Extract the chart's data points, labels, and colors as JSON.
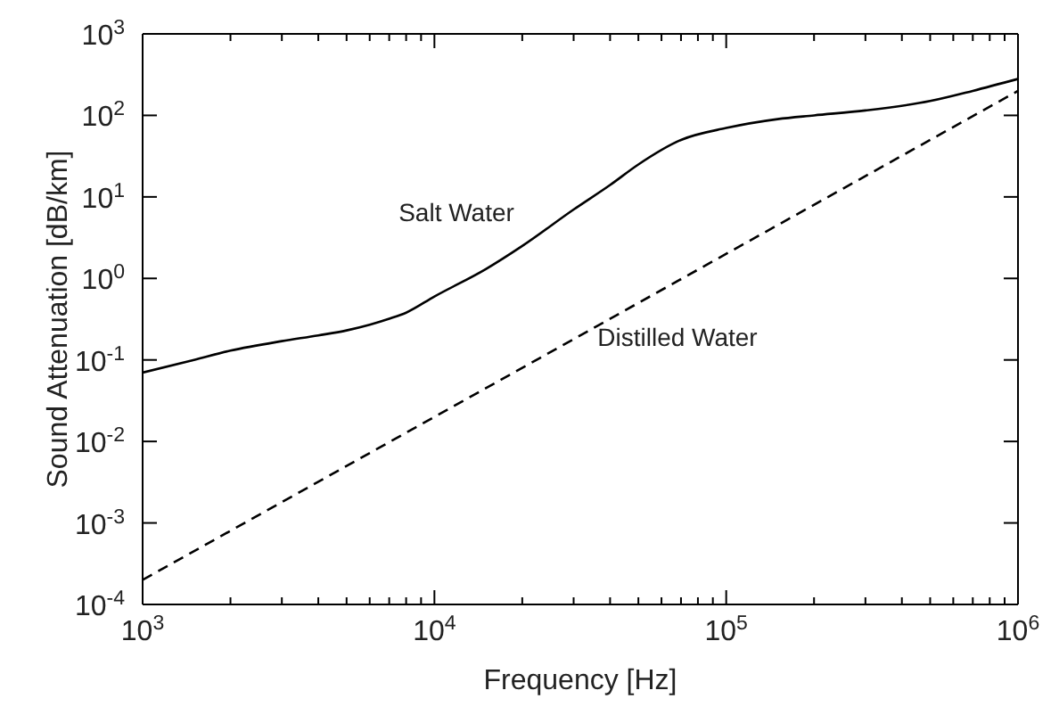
{
  "chart_data": {
    "type": "line",
    "log": "xy",
    "xlabel": "Frequency [Hz]",
    "ylabel": "Sound Attenuation [dB/km]",
    "grid": false,
    "legend": false,
    "marker": "none",
    "xlim": [
      1000,
      1000000
    ],
    "ylim": [
      0.0001,
      1000
    ],
    "xticks": [
      {
        "value": 1000,
        "label": "10$^{3}$"
      },
      {
        "value": 2000,
        "label": null
      },
      {
        "value": 3000,
        "label": null
      },
      {
        "value": 4000,
        "label": null
      },
      {
        "value": 5000,
        "label": null
      },
      {
        "value": 6000,
        "label": null
      },
      {
        "value": 7000,
        "label": null
      },
      {
        "value": 8000,
        "label": null
      },
      {
        "value": 9000,
        "label": null
      },
      {
        "value": 10000,
        "label": "10$^{4}$"
      },
      {
        "value": 20000,
        "label": null
      },
      {
        "value": 30000,
        "label": null
      },
      {
        "value": 40000,
        "label": null
      },
      {
        "value": 50000,
        "label": null
      },
      {
        "value": 60000,
        "label": null
      },
      {
        "value": 70000,
        "label": null
      },
      {
        "value": 80000,
        "label": null
      },
      {
        "value": 90000,
        "label": null
      },
      {
        "value": 100000,
        "label": "10$^{5}$"
      },
      {
        "value": 200000,
        "label": null
      },
      {
        "value": 300000,
        "label": null
      },
      {
        "value": 400000,
        "label": null
      },
      {
        "value": 500000,
        "label": null
      },
      {
        "value": 600000,
        "label": null
      },
      {
        "value": 700000,
        "label": null
      },
      {
        "value": 800000,
        "label": null
      },
      {
        "value": 900000,
        "label": null
      },
      {
        "value": 1000000,
        "label": "10$^{6}$"
      }
    ],
    "yticks": [
      {
        "value": 0.0001,
        "label": "10$^{-4}$"
      },
      {
        "value": 0.001,
        "label": "10$^{-3}$"
      },
      {
        "value": 0.01,
        "label": "10$^{-2}$"
      },
      {
        "value": 0.1,
        "label": "10$^{-1}$"
      },
      {
        "value": 1,
        "label": "10$^{0}$"
      },
      {
        "value": 10,
        "label": "10$^{1}$"
      },
      {
        "value": 100,
        "label": "10$^{2}$"
      },
      {
        "value": 1000,
        "label": "10$^{3}$"
      }
    ],
    "series": [
      {
        "name": "Salt Water",
        "color": "#000000",
        "line_style": "solid",
        "x": [
          1000,
          1500,
          2000,
          3000,
          4000,
          5000,
          6000,
          7000,
          8000,
          10000,
          15000,
          20000,
          30000,
          40000,
          50000,
          70000,
          100000,
          150000,
          200000,
          300000,
          500000,
          700000,
          1000000
        ],
        "values": [
          0.07,
          0.1,
          0.13,
          0.17,
          0.2,
          0.23,
          0.27,
          0.32,
          0.38,
          0.6,
          1.3,
          2.5,
          7,
          14,
          25,
          50,
          70,
          90,
          100,
          115,
          150,
          200,
          280
        ]
      },
      {
        "name": "Distilled Water",
        "color": "#000000",
        "line_style": "dashed",
        "x": [
          1000,
          1000000
        ],
        "values": [
          0.0002,
          200
        ]
      }
    ]
  }
}
